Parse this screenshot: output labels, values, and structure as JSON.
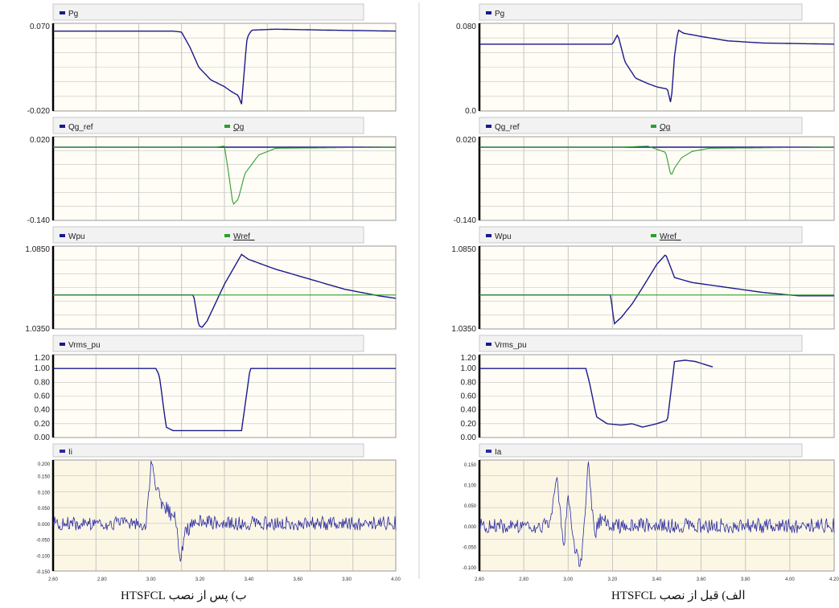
{
  "captions": {
    "right": "الف) قبل از نصب HTSFCL",
    "left": "ب) پس از نصب HTSFCL"
  },
  "chart_data": [
    {
      "id": "pg-after",
      "type": "line",
      "legend": [
        "Pg"
      ],
      "yticks": [
        "0.070",
        "-0.020"
      ],
      "ylim": [
        -0.02,
        0.07
      ],
      "x": [
        2.0,
        2.6,
        2.7,
        2.75,
        2.8,
        2.85,
        2.92,
        3.0,
        3.04,
        3.08,
        3.1,
        3.13,
        3.14,
        3.16,
        3.3,
        3.6,
        4.0
      ],
      "series": [
        {
          "name": "Pg",
          "color": "#1a1a8c",
          "values": [
            0.062,
            0.062,
            0.062,
            0.061,
            0.045,
            0.025,
            0.012,
            0.005,
            0.0,
            -0.004,
            -0.013,
            0.052,
            0.058,
            0.063,
            0.064,
            0.063,
            0.062
          ]
        }
      ]
    },
    {
      "id": "pg-before",
      "type": "line",
      "legend": [
        "Pg"
      ],
      "yticks": [
        "0.080",
        "0.0"
      ],
      "ylim": [
        0.0,
        0.08
      ],
      "x": [
        2.0,
        2.6,
        2.75,
        2.78,
        2.82,
        2.88,
        2.95,
        3.0,
        3.06,
        3.08,
        3.1,
        3.12,
        3.15,
        3.25,
        3.4,
        3.6,
        4.0
      ],
      "series": [
        {
          "name": "Pg",
          "color": "#1a1a8c",
          "values": [
            0.061,
            0.061,
            0.061,
            0.07,
            0.045,
            0.03,
            0.025,
            0.022,
            0.02,
            0.006,
            0.05,
            0.074,
            0.071,
            0.068,
            0.064,
            0.062,
            0.061
          ]
        }
      ]
    },
    {
      "id": "qg-after",
      "type": "line",
      "legend": [
        "Qg_ref",
        "Qg"
      ],
      "yticks": [
        "0.020",
        "-0.140"
      ],
      "ylim": [
        -0.14,
        0.02
      ],
      "x": [
        2.0,
        2.8,
        2.95,
        3.0,
        3.02,
        3.05,
        3.08,
        3.12,
        3.2,
        3.3,
        4.0
      ],
      "series": [
        {
          "name": "Qg_ref",
          "color": "#1a1a8c",
          "values": [
            0.0,
            0.0,
            0.0,
            0.0,
            0.0,
            0.0,
            0.0,
            0.0,
            0.0,
            0.0,
            0.0
          ]
        },
        {
          "name": "Qg",
          "color": "#2e9e2e",
          "values": [
            0.0,
            0.0,
            0.0,
            0.002,
            -0.04,
            -0.11,
            -0.1,
            -0.05,
            -0.015,
            -0.002,
            0.0
          ]
        }
      ]
    },
    {
      "id": "qg-before",
      "type": "line",
      "legend": [
        "Qg_ref",
        "Qg"
      ],
      "yticks": [
        "0.020",
        "-0.140"
      ],
      "ylim": [
        -0.14,
        0.02
      ],
      "x": [
        2.0,
        2.8,
        2.95,
        3.05,
        3.08,
        3.1,
        3.14,
        3.2,
        3.3,
        4.0
      ],
      "series": [
        {
          "name": "Qg_ref",
          "color": "#1a1a8c",
          "values": [
            0.0,
            0.0,
            0.0,
            0.0,
            0.0,
            0.0,
            0.0,
            0.0,
            0.0,
            0.0
          ]
        },
        {
          "name": "Qg",
          "color": "#2e9e2e",
          "values": [
            0.0,
            0.0,
            0.002,
            -0.01,
            -0.055,
            -0.04,
            -0.02,
            -0.008,
            -0.002,
            0.0
          ]
        }
      ]
    },
    {
      "id": "w-after",
      "type": "line",
      "legend": [
        "Wpu",
        "Wref_"
      ],
      "yticks": [
        "1.0850",
        "1.0350"
      ],
      "ylim": [
        1.035,
        1.085
      ],
      "x": [
        2.0,
        2.6,
        2.82,
        2.85,
        2.87,
        2.9,
        3.0,
        3.1,
        3.14,
        3.3,
        3.5,
        3.7,
        3.9,
        4.0
      ],
      "series": [
        {
          "name": "Wpu",
          "color": "#1a1a8c",
          "values": [
            1.0555,
            1.0555,
            1.0555,
            1.037,
            1.036,
            1.04,
            1.062,
            1.08,
            1.077,
            1.071,
            1.065,
            1.059,
            1.055,
            1.0535
          ]
        },
        {
          "name": "Wref_",
          "color": "#2e9e2e",
          "values": [
            1.0555,
            1.0555,
            1.0555,
            1.0555,
            1.0555,
            1.0555,
            1.0555,
            1.0555,
            1.0555,
            1.0555,
            1.0555,
            1.0555,
            1.0555,
            1.0555
          ]
        }
      ]
    },
    {
      "id": "w-before",
      "type": "line",
      "legend": [
        "Wpu",
        "Wref_"
      ],
      "yticks": [
        "1.0850",
        "1.0350"
      ],
      "ylim": [
        1.035,
        1.085
      ],
      "x": [
        2.0,
        2.6,
        2.74,
        2.76,
        2.8,
        2.86,
        2.92,
        3.0,
        3.05,
        3.1,
        3.2,
        3.4,
        3.6,
        3.8,
        4.0
      ],
      "series": [
        {
          "name": "Wpu",
          "color": "#1a1a8c",
          "values": [
            1.0555,
            1.0555,
            1.0555,
            1.038,
            1.042,
            1.05,
            1.06,
            1.074,
            1.08,
            1.066,
            1.063,
            1.06,
            1.057,
            1.055,
            1.055
          ]
        },
        {
          "name": "Wref_",
          "color": "#2e9e2e",
          "values": [
            1.0555,
            1.0555,
            1.0555,
            1.0555,
            1.0555,
            1.0555,
            1.0555,
            1.0555,
            1.0555,
            1.0555,
            1.0555,
            1.0555,
            1.0555,
            1.0555,
            1.0555
          ]
        }
      ]
    },
    {
      "id": "v-after",
      "type": "line",
      "legend": [
        "Vrms_pu"
      ],
      "yticks": [
        "1.20",
        "1.00",
        "0.80",
        "0.60",
        "0.40",
        "0.20",
        "0.00"
      ],
      "ylim": [
        0.0,
        1.2
      ],
      "x": [
        2.0,
        2.6,
        2.62,
        2.66,
        2.7,
        2.8,
        2.9,
        3.0,
        3.05,
        3.1,
        3.15,
        3.2,
        4.0
      ],
      "series": [
        {
          "name": "Vrms_pu",
          "color": "#1a1a8c",
          "values": [
            1.0,
            1.0,
            0.9,
            0.15,
            0.1,
            0.1,
            0.1,
            0.1,
            0.1,
            0.1,
            1.0,
            1.0,
            1.0
          ]
        }
      ]
    },
    {
      "id": "v-before",
      "type": "line",
      "legend": [
        "Vrms_pu"
      ],
      "yticks": [
        "1.20",
        "1.00",
        "0.80",
        "0.60",
        "0.40",
        "0.20",
        "0.00"
      ],
      "ylim": [
        0.0,
        1.2
      ],
      "x": [
        2.0,
        2.6,
        2.62,
        2.66,
        2.72,
        2.8,
        2.86,
        2.92,
        3.0,
        3.06,
        3.1,
        3.16,
        3.22,
        3.28,
        3.32
      ],
      "series": [
        {
          "name": "Vrms_pu",
          "color": "#1a1a8c",
          "values": [
            1.0,
            1.0,
            0.8,
            0.3,
            0.2,
            0.18,
            0.2,
            0.15,
            0.2,
            0.25,
            1.1,
            1.12,
            1.1,
            1.05,
            1.02
          ]
        }
      ]
    },
    {
      "id": "i-after",
      "type": "line",
      "legend": [
        "Ii"
      ],
      "yticks": [
        "0.200",
        "0.150",
        "0.100",
        "0.050",
        "0.000",
        "-0.050",
        "-0.100",
        "-0.150"
      ],
      "ylim": [
        -0.15,
        0.2
      ],
      "xticks": [
        "2.60",
        "2.80",
        "3.00",
        "3.20",
        "3.40",
        "3.60",
        "3.80",
        "4.00"
      ],
      "xlim": [
        2.6,
        4.0
      ],
      "noise_amplitude": 0.022,
      "x": [
        2.6,
        2.98,
        3.0,
        3.02,
        3.04,
        3.06,
        3.08,
        3.1,
        3.12,
        3.14,
        3.18,
        3.25,
        4.0
      ],
      "series": [
        {
          "name": "Ii",
          "color": "#2a2aa0",
          "values": [
            0.0,
            0.0,
            0.19,
            0.12,
            0.07,
            0.05,
            0.03,
            0.02,
            -0.11,
            -0.03,
            0.01,
            0.0,
            0.0
          ]
        }
      ]
    },
    {
      "id": "i-before",
      "type": "line",
      "legend": [
        "Ia"
      ],
      "yticks": [
        "0.150",
        "0.100",
        "0.050",
        "0.000",
        "-0.050",
        "-0.100"
      ],
      "ylim": [
        -0.11,
        0.16
      ],
      "xticks": [
        "2.60",
        "2.80",
        "3.00",
        "3.20",
        "3.40",
        "3.60",
        "3.80",
        "4.00",
        "4.20"
      ],
      "xlim": [
        2.6,
        4.2
      ],
      "noise_amplitude": 0.018,
      "x": [
        2.6,
        2.92,
        2.95,
        2.98,
        3.0,
        3.03,
        3.06,
        3.09,
        3.12,
        3.15,
        3.2,
        4.2
      ],
      "series": [
        {
          "name": "Ia",
          "color": "#2a2aa0",
          "values": [
            0.0,
            0.0,
            0.12,
            -0.06,
            0.08,
            -0.05,
            -0.1,
            0.15,
            -0.02,
            0.02,
            0.0,
            0.0
          ]
        }
      ]
    }
  ]
}
